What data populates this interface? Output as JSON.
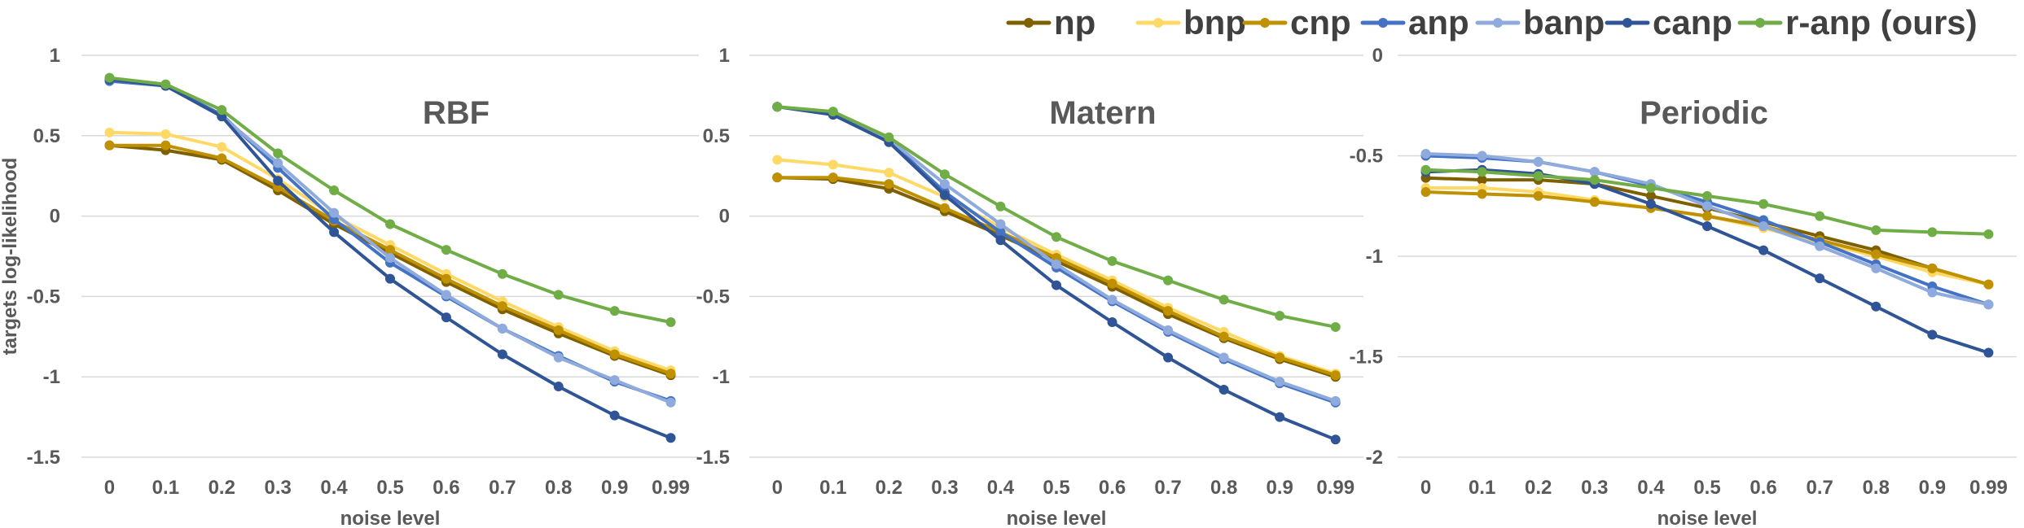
{
  "chart_data": [
    {
      "type": "line",
      "title": "RBF",
      "xlabel": "noise level",
      "ylabel": "targets log-likelihood",
      "categories": [
        "0",
        "0.1",
        "0.2",
        "0.3",
        "0.4",
        "0.5",
        "0.6",
        "0.7",
        "0.8",
        "0.9",
        "0.99"
      ],
      "ylim": [
        -1.5,
        1
      ],
      "yticks": [
        "1",
        "0.5",
        "0",
        "-0.5",
        "-1",
        "-1.5"
      ],
      "grid": true,
      "series": [
        {
          "name": "np",
          "color": "#7f6000",
          "values": [
            0.44,
            0.41,
            0.35,
            0.16,
            -0.05,
            -0.23,
            -0.41,
            -0.58,
            -0.73,
            -0.87,
            -0.99
          ]
        },
        {
          "name": "bnp",
          "color": "#ffd966",
          "values": [
            0.52,
            0.51,
            0.43,
            0.23,
            0.0,
            -0.18,
            -0.36,
            -0.53,
            -0.69,
            -0.84,
            -0.96
          ]
        },
        {
          "name": "cnp",
          "color": "#bf9000",
          "values": [
            0.44,
            0.44,
            0.36,
            0.18,
            -0.03,
            -0.21,
            -0.39,
            -0.56,
            -0.71,
            -0.86,
            -0.98
          ]
        },
        {
          "name": "anp",
          "color": "#4472c4",
          "values": [
            0.84,
            0.81,
            0.63,
            0.3,
            -0.02,
            -0.29,
            -0.5,
            -0.7,
            -0.87,
            -1.03,
            -1.15
          ]
        },
        {
          "name": "banp",
          "color": "#8faadc",
          "values": [
            0.85,
            0.81,
            0.62,
            0.33,
            0.02,
            -0.26,
            -0.49,
            -0.7,
            -0.88,
            -1.02,
            -1.16
          ]
        },
        {
          "name": "canp",
          "color": "#2f5597",
          "values": [
            0.85,
            0.81,
            0.62,
            0.22,
            -0.1,
            -0.39,
            -0.63,
            -0.86,
            -1.06,
            -1.24,
            -1.38
          ]
        },
        {
          "name": "r-anp (ours)",
          "color": "#70ad47",
          "values": [
            0.86,
            0.82,
            0.66,
            0.39,
            0.16,
            -0.05,
            -0.21,
            -0.36,
            -0.49,
            -0.59,
            -0.66
          ]
        }
      ]
    },
    {
      "type": "line",
      "title": "Matern",
      "xlabel": "noise level",
      "ylabel": "",
      "categories": [
        "0",
        "0.1",
        "0.2",
        "0.3",
        "0.4",
        "0.5",
        "0.6",
        "0.7",
        "0.8",
        "0.9",
        "0.99"
      ],
      "ylim": [
        -1.5,
        1
      ],
      "yticks": [
        "1",
        "0.5",
        "0",
        "-0.5",
        "-1",
        "-1.5"
      ],
      "grid": true,
      "series": [
        {
          "name": "np",
          "color": "#7f6000",
          "values": [
            0.24,
            0.23,
            0.17,
            0.03,
            -0.12,
            -0.28,
            -0.44,
            -0.61,
            -0.76,
            -0.89,
            -1.0
          ]
        },
        {
          "name": "bnp",
          "color": "#ffd966",
          "values": [
            0.35,
            0.32,
            0.27,
            0.12,
            -0.07,
            -0.24,
            -0.4,
            -0.57,
            -0.72,
            -0.87,
            -0.98
          ]
        },
        {
          "name": "cnp",
          "color": "#bf9000",
          "values": [
            0.24,
            0.24,
            0.2,
            0.05,
            -0.1,
            -0.26,
            -0.42,
            -0.59,
            -0.75,
            -0.88,
            -0.99
          ]
        },
        {
          "name": "anp",
          "color": "#4472c4",
          "values": [
            0.68,
            0.64,
            0.47,
            0.15,
            -0.1,
            -0.32,
            -0.53,
            -0.72,
            -0.89,
            -1.04,
            -1.16
          ]
        },
        {
          "name": "banp",
          "color": "#8faadc",
          "values": [
            0.68,
            0.64,
            0.48,
            0.2,
            -0.05,
            -0.3,
            -0.52,
            -0.71,
            -0.88,
            -1.03,
            -1.15
          ]
        },
        {
          "name": "canp",
          "color": "#2f5597",
          "values": [
            0.68,
            0.63,
            0.46,
            0.13,
            -0.15,
            -0.43,
            -0.66,
            -0.88,
            -1.08,
            -1.25,
            -1.39
          ]
        },
        {
          "name": "r-anp (ours)",
          "color": "#70ad47",
          "values": [
            0.68,
            0.65,
            0.49,
            0.26,
            0.06,
            -0.13,
            -0.28,
            -0.4,
            -0.52,
            -0.62,
            -0.69
          ]
        }
      ]
    },
    {
      "type": "line",
      "title": "Periodic",
      "xlabel": "noise level",
      "ylabel": "",
      "categories": [
        "0",
        "0.1",
        "0.2",
        "0.3",
        "0.4",
        "0.5",
        "0.6",
        "0.7",
        "0.8",
        "0.9",
        "0.99"
      ],
      "ylim": [
        -2,
        0
      ],
      "yticks": [
        "0",
        "-0.5",
        "-1",
        "-1.5",
        "-2"
      ],
      "grid": true,
      "series": [
        {
          "name": "np",
          "color": "#7f6000",
          "values": [
            -0.61,
            -0.62,
            -0.62,
            -0.64,
            -0.7,
            -0.76,
            -0.83,
            -0.9,
            -0.97,
            -1.06,
            -1.14
          ]
        },
        {
          "name": "bnp",
          "color": "#ffd966",
          "values": [
            -0.66,
            -0.66,
            -0.68,
            -0.72,
            -0.76,
            -0.8,
            -0.86,
            -0.93,
            -1.0,
            -1.08,
            -1.14
          ]
        },
        {
          "name": "cnp",
          "color": "#bf9000",
          "values": [
            -0.68,
            -0.69,
            -0.7,
            -0.73,
            -0.76,
            -0.8,
            -0.85,
            -0.92,
            -0.99,
            -1.06,
            -1.14
          ]
        },
        {
          "name": "anp",
          "color": "#4472c4",
          "values": [
            -0.5,
            -0.51,
            -0.53,
            -0.58,
            -0.65,
            -0.73,
            -0.82,
            -0.93,
            -1.04,
            -1.15,
            -1.24
          ]
        },
        {
          "name": "banp",
          "color": "#8faadc",
          "values": [
            -0.49,
            -0.5,
            -0.53,
            -0.58,
            -0.64,
            -0.75,
            -0.85,
            -0.95,
            -1.06,
            -1.18,
            -1.24
          ]
        },
        {
          "name": "canp",
          "color": "#2f5597",
          "values": [
            -0.58,
            -0.57,
            -0.59,
            -0.64,
            -0.74,
            -0.85,
            -0.97,
            -1.11,
            -1.25,
            -1.39,
            -1.48
          ]
        },
        {
          "name": "r-anp (ours)",
          "color": "#70ad47",
          "values": [
            -0.57,
            -0.58,
            -0.6,
            -0.62,
            -0.66,
            -0.7,
            -0.74,
            -0.8,
            -0.87,
            -0.88,
            -0.89
          ]
        }
      ]
    }
  ],
  "legend": {
    "placement": "top-right",
    "items": [
      {
        "name": "np",
        "color": "#7f6000"
      },
      {
        "name": "bnp",
        "color": "#ffd966"
      },
      {
        "name": "cnp",
        "color": "#bf9000"
      },
      {
        "name": "anp",
        "color": "#4472c4"
      },
      {
        "name": "banp",
        "color": "#8faadc"
      },
      {
        "name": "canp",
        "color": "#2f5597"
      },
      {
        "name": "r-anp (ours)",
        "color": "#70ad47"
      }
    ]
  }
}
